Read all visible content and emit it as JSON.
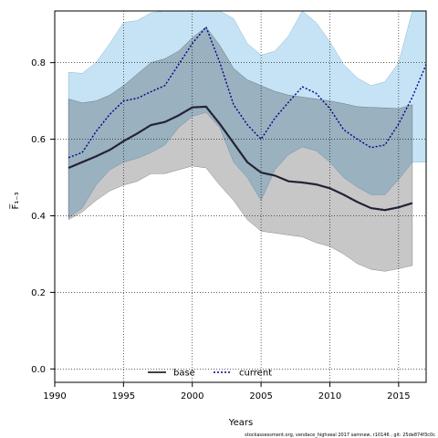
{
  "chart_data": {
    "type": "line",
    "xlabel": "Years",
    "ylabel": "F̅₁₋₃",
    "xlim": [
      1990,
      2017
    ],
    "ylim": [
      -0.035,
      0.935
    ],
    "xticks": [
      1990,
      1995,
      2000,
      2005,
      2010,
      2015
    ],
    "yticks": [
      0.0,
      0.2,
      0.4,
      0.6,
      0.8
    ],
    "ytick_labels": [
      "0.0",
      "0.2",
      "0.4",
      "0.6",
      "0.8"
    ],
    "grid": true,
    "legend_position": "bottom-left",
    "x": [
      1991,
      1992,
      1993,
      1994,
      1995,
      1996,
      1997,
      1998,
      1999,
      2000,
      2001,
      2002,
      2003,
      2004,
      2005,
      2006,
      2007,
      2008,
      2009,
      2010,
      2011,
      2012,
      2013,
      2014,
      2015,
      2016,
      2017
    ],
    "series": [
      {
        "name": "base",
        "line_color": "#000000",
        "band_color": "#bdbdbd",
        "line_style": "solid",
        "values": [
          0.525,
          0.54,
          0.555,
          0.572,
          0.595,
          0.615,
          0.637,
          0.645,
          0.662,
          0.683,
          0.685,
          0.64,
          0.59,
          0.54,
          0.513,
          0.505,
          0.49,
          0.487,
          0.482,
          0.472,
          0.455,
          0.436,
          0.42,
          0.415,
          0.422,
          0.433,
          null
        ],
        "lower": [
          0.39,
          0.41,
          0.44,
          0.465,
          0.48,
          0.49,
          0.51,
          0.51,
          0.52,
          0.53,
          0.525,
          0.48,
          0.44,
          0.39,
          0.36,
          0.355,
          0.35,
          0.345,
          0.33,
          0.32,
          0.3,
          0.275,
          0.26,
          0.255,
          0.262,
          0.27,
          null
        ],
        "upper": [
          0.705,
          0.695,
          0.7,
          0.715,
          0.74,
          0.77,
          0.8,
          0.81,
          0.83,
          0.865,
          0.893,
          0.845,
          0.785,
          0.755,
          0.74,
          0.725,
          0.715,
          0.71,
          0.705,
          0.7,
          0.693,
          0.685,
          0.683,
          0.682,
          0.68,
          0.69,
          null
        ]
      },
      {
        "name": "current",
        "line_color": "#00008b",
        "band_color": "#c5e3f5",
        "line_style": "dotted",
        "values": [
          0.552,
          0.565,
          0.62,
          0.665,
          0.7,
          0.707,
          0.724,
          0.74,
          0.795,
          0.85,
          0.893,
          0.8,
          0.69,
          0.638,
          0.6,
          0.655,
          0.697,
          0.737,
          0.72,
          0.68,
          0.625,
          0.6,
          0.578,
          0.585,
          0.64,
          0.71,
          0.795
        ],
        "lower": [
          0.395,
          0.42,
          0.48,
          0.52,
          0.54,
          0.55,
          0.565,
          0.585,
          0.63,
          0.66,
          0.67,
          0.63,
          0.54,
          0.5,
          0.44,
          0.52,
          0.56,
          0.58,
          0.57,
          0.54,
          0.5,
          0.475,
          0.455,
          0.455,
          0.495,
          0.54,
          0.54
        ],
        "upper": [
          0.775,
          0.772,
          0.8,
          0.85,
          0.905,
          0.91,
          0.93,
          0.935,
          0.935,
          0.935,
          0.935,
          0.935,
          0.915,
          0.85,
          0.82,
          0.83,
          0.87,
          0.935,
          0.905,
          0.855,
          0.795,
          0.76,
          0.74,
          0.75,
          0.8,
          0.935,
          0.935
        ]
      }
    ]
  },
  "footer": {
    "text": "stockassessment.org, vendace_highseal 2017 samnew, r10146 , git: 25de874f3c0c"
  },
  "colors": {
    "overlap": "#a0b8c8",
    "grid": "#000000"
  }
}
